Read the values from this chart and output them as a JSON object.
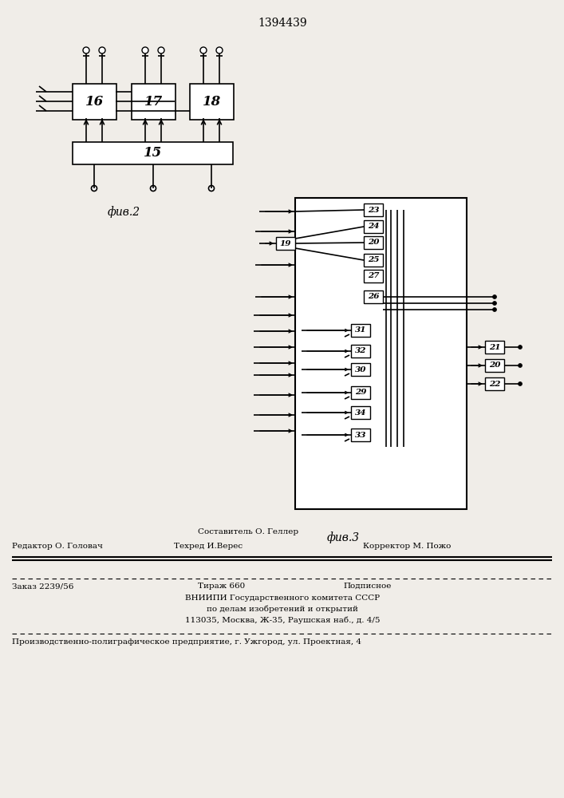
{
  "title": "1394439",
  "bg_color": "#f0ede8",
  "fig2_label": "фив.2",
  "fig3_label": "фив.3",
  "footer_editor": "Редактор О. Головач",
  "footer_composer": "Составитель О. Геллер",
  "footer_tech": "Техред И.Верес",
  "footer_corrector": "Корректор М. Пожо",
  "footer_order": "Заказ 2239/56",
  "footer_tirazh": "Тираж 660",
  "footer_podp": "Подписное",
  "footer_vnipi": "ВНИИПИ Государственного комитета СССР",
  "footer_po": "по делам изобретений и открытий",
  "footer_addr": "113035, Москва, Ж-35, Раушская наб., д. 4/5",
  "footer_prod": "Производственно-полиграфическое предприятие, г. Ужгород, ул. Проектная, 4"
}
